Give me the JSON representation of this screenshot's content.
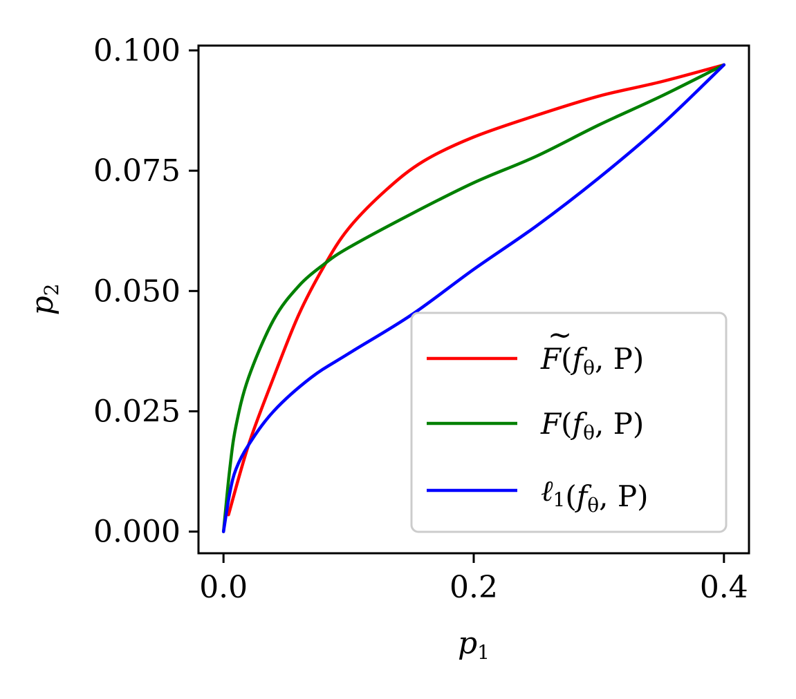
{
  "chart_data": {
    "type": "line",
    "xlabel": {
      "base": "p",
      "sub": "1"
    },
    "ylabel": {
      "base": "p",
      "sub": "2"
    },
    "xlim": [
      -0.02,
      0.42
    ],
    "ylim": [
      -0.0045,
      0.101
    ],
    "xticks": [
      0.0,
      0.2,
      0.4
    ],
    "xtick_labels": [
      "0.0",
      "0.2",
      "0.4"
    ],
    "yticks": [
      0.0,
      0.025,
      0.05,
      0.075,
      0.1
    ],
    "ytick_labels": [
      "0.000",
      "0.025",
      "0.050",
      "0.075",
      "0.100"
    ],
    "grid": false,
    "legend_position": "lower-right",
    "series": [
      {
        "name": "F̃(fθ, P)",
        "color": "#ff0000",
        "points": [
          [
            0.004,
            0.0035
          ],
          [
            0.02,
            0.018
          ],
          [
            0.04,
            0.032
          ],
          [
            0.06,
            0.045
          ],
          [
            0.08,
            0.055
          ],
          [
            0.1,
            0.063
          ],
          [
            0.13,
            0.071
          ],
          [
            0.16,
            0.077
          ],
          [
            0.2,
            0.082
          ],
          [
            0.25,
            0.0865
          ],
          [
            0.3,
            0.0905
          ],
          [
            0.35,
            0.0935
          ],
          [
            0.4,
            0.097
          ]
        ]
      },
      {
        "name": "F(fθ, P)",
        "color": "#008000",
        "points": [
          [
            0.0,
            0.0
          ],
          [
            0.005,
            0.013
          ],
          [
            0.01,
            0.022
          ],
          [
            0.02,
            0.032
          ],
          [
            0.04,
            0.044
          ],
          [
            0.06,
            0.051
          ],
          [
            0.08,
            0.0555
          ],
          [
            0.1,
            0.059
          ],
          [
            0.15,
            0.066
          ],
          [
            0.2,
            0.0725
          ],
          [
            0.25,
            0.078
          ],
          [
            0.3,
            0.0845
          ],
          [
            0.35,
            0.0905
          ],
          [
            0.4,
            0.097
          ]
        ]
      },
      {
        "name": "ℓ1(fθ, P)",
        "color": "#0000ff",
        "points": [
          [
            0.0,
            0.0
          ],
          [
            0.005,
            0.008
          ],
          [
            0.01,
            0.013
          ],
          [
            0.02,
            0.018
          ],
          [
            0.04,
            0.025
          ],
          [
            0.07,
            0.032
          ],
          [
            0.1,
            0.037
          ],
          [
            0.15,
            0.045
          ],
          [
            0.2,
            0.0545
          ],
          [
            0.25,
            0.0635
          ],
          [
            0.3,
            0.0735
          ],
          [
            0.35,
            0.0845
          ],
          [
            0.4,
            0.097
          ]
        ]
      }
    ],
    "legend": [
      {
        "prefix": "F",
        "tilde": true,
        "sub": "",
        "args": "(f",
        "argsub": "θ",
        "tail": ", P)"
      },
      {
        "prefix": "F",
        "tilde": false,
        "sub": "",
        "args": "(f",
        "argsub": "θ",
        "tail": ", P)"
      },
      {
        "prefix": "ℓ",
        "tilde": false,
        "sub": "1",
        "args": "(f",
        "argsub": "θ",
        "tail": ", P)"
      }
    ]
  }
}
